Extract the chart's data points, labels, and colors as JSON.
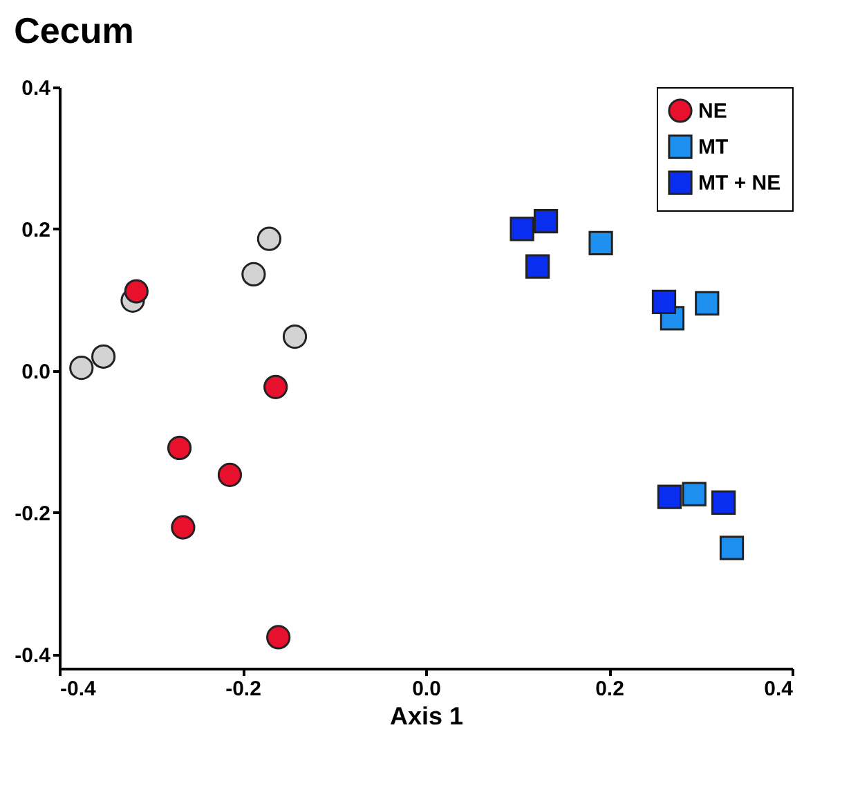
{
  "chart_data": {
    "type": "scatter",
    "title": "Cecum",
    "xlabel": "Axis 1",
    "xlim": [
      -0.4,
      0.4
    ],
    "xticks": [
      {
        "value": -0.4,
        "label": "-0.4"
      },
      {
        "value": -0.2,
        "label": "-0.2"
      },
      {
        "value": 0,
        "label": "0.0"
      },
      {
        "value": 0.2,
        "label": "0.2"
      },
      {
        "value": 0.4,
        "label": "0.4"
      }
    ],
    "ylim": [
      -0.42,
      0.4
    ],
    "yticks": [
      {
        "value": -0.4,
        "label": "-0.4"
      },
      {
        "value": -0.2,
        "label": "-0.2"
      },
      {
        "value": 0,
        "label": "0.0"
      },
      {
        "value": 0.2,
        "label": "0.2"
      },
      {
        "value": 0.4,
        "label": "0.4"
      }
    ],
    "grid": false,
    "legend": "top right",
    "series": [
      {
        "color": "#d3d3d3",
        "marker": "circle",
        "x": [
          -0.376,
          -0.352,
          -0.32,
          -0.188,
          -0.171,
          -0.143
        ],
        "values": [
          0.004,
          0.02,
          0.099,
          0.136,
          0.186,
          0.048
        ]
      },
      {
        "name": "NE",
        "color": "#e8112d",
        "marker": "circle",
        "x": [
          -0.316,
          -0.164,
          -0.269,
          -0.214,
          -0.265,
          -0.161
        ],
        "values": [
          0.112,
          -0.023,
          -0.109,
          -0.147,
          -0.221,
          -0.376
        ]
      },
      {
        "name": "MT",
        "color": "#1e90f0",
        "marker": "square",
        "x": [
          0.191,
          0.269,
          0.307,
          0.293,
          0.334
        ],
        "values": [
          0.18,
          0.074,
          0.095,
          -0.174,
          -0.25
        ]
      },
      {
        "name": "MT + NE",
        "color": "#0a2ef0",
        "marker": "square",
        "x": [
          0.105,
          0.131,
          0.122,
          0.26,
          0.266,
          0.325
        ],
        "values": [
          0.2,
          0.211,
          0.147,
          0.097,
          -0.178,
          -0.186
        ]
      }
    ]
  }
}
